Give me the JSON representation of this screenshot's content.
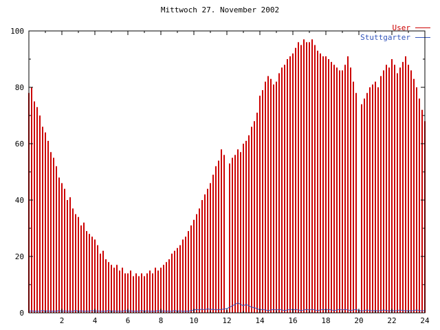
{
  "chart_data": {
    "type": "bar",
    "title": "Mittwoch 27. November 2002",
    "x_start": 0,
    "x_step_hours": 0.1666667,
    "x_range": [
      0,
      24
    ],
    "y_range": [
      0,
      100
    ],
    "x_tick_values": [
      2,
      4,
      6,
      8,
      10,
      12,
      14,
      16,
      18,
      20,
      22,
      24
    ],
    "y_tick_values": [
      0,
      20,
      40,
      60,
      80,
      100
    ],
    "grid": false,
    "legend_position": "top-right",
    "series": [
      {
        "name": "User",
        "style": "impulses",
        "color": "#cc0000",
        "values": [
          78,
          80,
          75,
          73,
          70,
          66,
          64,
          61,
          57,
          55,
          52,
          48,
          46,
          44,
          40,
          41,
          37,
          35,
          34,
          31,
          32,
          29,
          28,
          27,
          26,
          24,
          21,
          22,
          19,
          18,
          17,
          16,
          17,
          15,
          16,
          14,
          14,
          15,
          13,
          14,
          13,
          14,
          13,
          14,
          15,
          14,
          16,
          15,
          16,
          17,
          18,
          19,
          21,
          22,
          23,
          24,
          26,
          27,
          29,
          31,
          33,
          35,
          37,
          40,
          42,
          44,
          46,
          49,
          52,
          54,
          58,
          56,
          1,
          53,
          55,
          56,
          58,
          57,
          60,
          61,
          63,
          66,
          68,
          71,
          77,
          79,
          82,
          84,
          83,
          81,
          82,
          85,
          87,
          88,
          90,
          91,
          92,
          94,
          96,
          95,
          97,
          96,
          96,
          97,
          95,
          93,
          92,
          91,
          91,
          90,
          89,
          88,
          87,
          86,
          86,
          88,
          91,
          87,
          82,
          78,
          1,
          74,
          76,
          78,
          80,
          81,
          82,
          80,
          84,
          86,
          88,
          87,
          90,
          88,
          85,
          87,
          89,
          91,
          88,
          86,
          83,
          80,
          76,
          72,
          68
        ]
      },
      {
        "name": "Stuttgarter",
        "style": "line",
        "color": "#3355bb",
        "values": [
          0.5,
          0.7,
          0.5,
          0.6,
          0.5,
          0.8,
          0.5,
          0.7,
          0.5,
          0.6,
          0.5,
          0.8,
          0.5,
          0.7,
          0.5,
          0.6,
          0.5,
          0.8,
          0.5,
          0.7,
          0.5,
          0.6,
          0.5,
          0.8,
          0.5,
          0.7,
          0.5,
          0.6,
          0.5,
          0.8,
          0.5,
          0.7,
          0.5,
          0.6,
          0.5,
          0.8,
          0.5,
          0.7,
          0.5,
          0.6,
          0.5,
          0.8,
          0.5,
          0.7,
          0.5,
          0.6,
          0.5,
          0.8,
          0.5,
          0.7,
          0.5,
          0.6,
          0.5,
          0.8,
          0.5,
          0.7,
          0.5,
          0.6,
          0.5,
          0.8,
          1,
          1.2,
          1,
          1.3,
          1,
          1.5,
          1.1,
          1.3,
          1,
          1.2,
          1.1,
          1.4,
          1.5,
          2,
          2.5,
          3,
          3.5,
          3,
          2.5,
          3,
          2.5,
          2,
          1.8,
          1.5,
          1,
          1.2,
          1,
          0.8,
          1,
          1.2,
          1,
          1.2,
          1,
          0.8,
          1,
          1.2,
          1,
          1.2,
          1,
          0.8,
          1,
          1.2,
          1,
          1.2,
          1,
          0.8,
          1,
          1.2,
          1,
          1.2,
          1,
          0.8,
          1,
          1.2,
          1,
          1.2,
          1,
          0.8,
          1,
          1.2,
          0.8,
          0.7,
          0.8,
          1,
          0.8,
          0.7,
          0.8,
          0.7,
          0.8,
          1,
          0.8,
          0.7,
          0.8,
          0.7,
          0.8,
          1,
          0.8,
          0.7,
          0.8,
          0.7,
          0.8,
          1,
          0.8,
          0.7,
          0.8
        ]
      }
    ]
  }
}
